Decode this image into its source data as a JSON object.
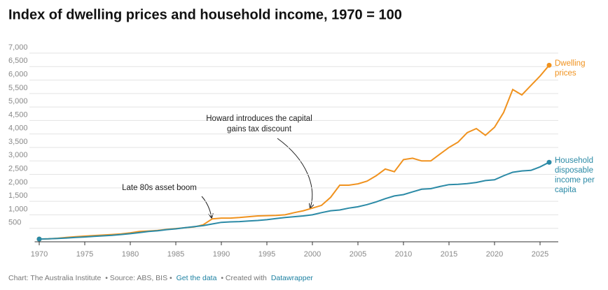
{
  "chart_data": {
    "type": "line",
    "title": "Index of dwelling prices and household income, 1970 = 100",
    "x": [
      1970,
      1971,
      1972,
      1973,
      1974,
      1975,
      1976,
      1977,
      1978,
      1979,
      1980,
      1981,
      1982,
      1983,
      1984,
      1985,
      1986,
      1987,
      1988,
      1989,
      1990,
      1991,
      1992,
      1993,
      1994,
      1995,
      1996,
      1997,
      1998,
      1999,
      2000,
      2001,
      2002,
      2003,
      2004,
      2005,
      2006,
      2007,
      2008,
      2009,
      2010,
      2011,
      2012,
      2013,
      2014,
      2015,
      2016,
      2017,
      2018,
      2019,
      2020,
      2021,
      2022,
      2023,
      2024,
      2025,
      2026
    ],
    "series": [
      {
        "name": "Dwelling prices",
        "color": "#f0921e",
        "values": [
          100,
          110,
          130,
          160,
          190,
          210,
          230,
          250,
          270,
          290,
          330,
          380,
          400,
          420,
          460,
          490,
          520,
          550,
          630,
          850,
          880,
          880,
          900,
          930,
          960,
          970,
          980,
          1000,
          1080,
          1150,
          1250,
          1350,
          1650,
          2100,
          2100,
          2150,
          2250,
          2450,
          2700,
          2600,
          3050,
          3100,
          3000,
          3000,
          3250,
          3500,
          3700,
          4050,
          4200,
          3950,
          4250,
          4800,
          5650,
          5450,
          5800,
          6150,
          6550
        ]
      },
      {
        "name": "Household disposable income per capita",
        "color": "#2b8aa6",
        "values": [
          100,
          110,
          125,
          140,
          160,
          180,
          200,
          220,
          240,
          270,
          300,
          340,
          380,
          410,
          450,
          480,
          520,
          560,
          600,
          660,
          720,
          740,
          750,
          770,
          790,
          820,
          860,
          900,
          930,
          960,
          1000,
          1080,
          1150,
          1180,
          1250,
          1300,
          1380,
          1480,
          1600,
          1700,
          1750,
          1850,
          1950,
          1970,
          2050,
          2120,
          2130,
          2160,
          2200,
          2270,
          2300,
          2450,
          2580,
          2630,
          2650,
          2780,
          2950
        ]
      }
    ],
    "xlim": [
      1969.5,
      2027
    ],
    "xticks": [
      1970,
      1975,
      1980,
      1985,
      1990,
      1995,
      2000,
      2005,
      2010,
      2015,
      2020,
      2025
    ],
    "ylim": [
      0,
      7000
    ],
    "yticks": [
      {
        "value": 500,
        "label": "500"
      },
      {
        "value": 1000,
        "label": "1,000"
      },
      {
        "value": 1500,
        "label": "1,500"
      },
      {
        "value": 2000,
        "label": "2,000"
      },
      {
        "value": 2500,
        "label": "2,500"
      },
      {
        "value": 3000,
        "label": "3,000"
      },
      {
        "value": 3500,
        "label": "3,500"
      },
      {
        "value": 4000,
        "label": "4,000"
      },
      {
        "value": 4500,
        "label": "4,500"
      },
      {
        "value": 5000,
        "label": "5,000"
      },
      {
        "value": 5500,
        "label": "5,500"
      },
      {
        "value": 6000,
        "label": "6,000"
      },
      {
        "value": 6500,
        "label": "6,500"
      },
      {
        "value": 7000,
        "label": "7,000"
      }
    ],
    "grid": true,
    "annotations": [
      {
        "text": "Howard introduces the capital gains tax discount",
        "x": 2000
      },
      {
        "text": "Late 80s asset boom",
        "x": 1989
      }
    ],
    "footer": {
      "credit": "Chart: The Australia Institute",
      "source": "• Source: ABS, BIS •",
      "link": "Get the data",
      "created": "• Created with",
      "tool": "Datawrapper"
    }
  }
}
